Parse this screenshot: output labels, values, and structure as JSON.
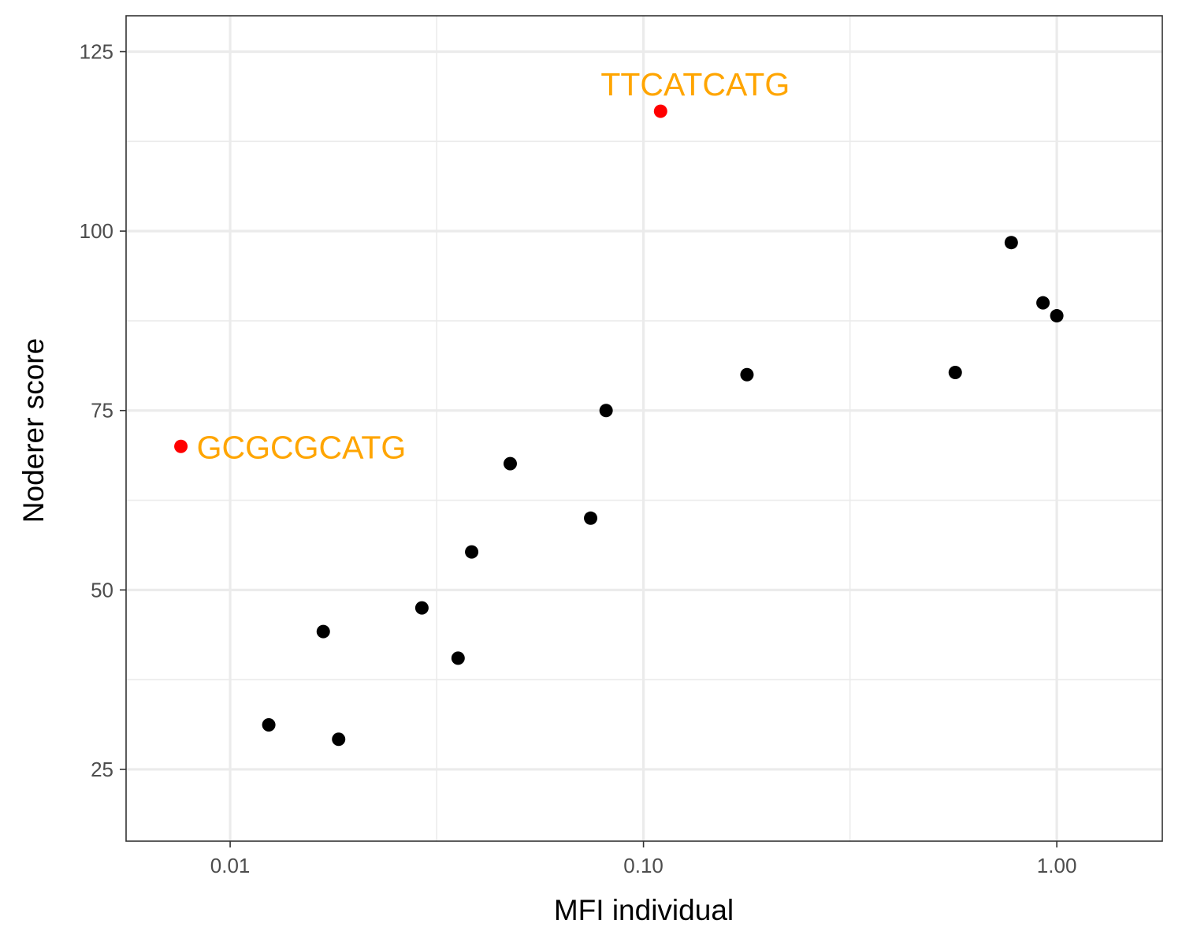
{
  "chart_data": {
    "type": "scatter",
    "title": "",
    "xlabel": "MFI individual",
    "ylabel": "Noderer score",
    "x_scale": "log10",
    "xlim": [
      0.0056,
      1.8
    ],
    "ylim": [
      15,
      130
    ],
    "x_ticks": [
      {
        "value": 0.01,
        "label": "0.01"
      },
      {
        "value": 0.1,
        "label": "0.10"
      },
      {
        "value": 1.0,
        "label": "1.00"
      }
    ],
    "y_ticks": [
      {
        "value": 25,
        "label": "25"
      },
      {
        "value": 50,
        "label": "50"
      },
      {
        "value": 75,
        "label": "75"
      },
      {
        "value": 100,
        "label": "100"
      },
      {
        "value": 125,
        "label": "125"
      }
    ],
    "y_minor_ticks": [
      37.5,
      62.5,
      87.5,
      112.5
    ],
    "x_minor_ticks": [
      0.0316,
      0.316
    ],
    "grid": true,
    "colors": {
      "point": "#000000",
      "highlight": "#ff0000",
      "label": "#ffa500",
      "grid": "#ebebeb",
      "panel_border": "#333333"
    },
    "points": [
      {
        "x": 0.0124,
        "y": 31.2
      },
      {
        "x": 0.0168,
        "y": 44.2
      },
      {
        "x": 0.0183,
        "y": 29.2
      },
      {
        "x": 0.0291,
        "y": 47.5
      },
      {
        "x": 0.0356,
        "y": 40.5
      },
      {
        "x": 0.0384,
        "y": 55.3
      },
      {
        "x": 0.0476,
        "y": 67.6
      },
      {
        "x": 0.0745,
        "y": 60.0
      },
      {
        "x": 0.0812,
        "y": 75.0
      },
      {
        "x": 0.178,
        "y": 80.0
      },
      {
        "x": 0.568,
        "y": 80.3
      },
      {
        "x": 0.776,
        "y": 98.4
      },
      {
        "x": 0.926,
        "y": 90.0
      },
      {
        "x": 1.0,
        "y": 88.2
      }
    ],
    "highlighted_points": [
      {
        "x": 0.11,
        "y": 116.7,
        "label": "TTCATCATG"
      },
      {
        "x": 0.0076,
        "y": 70.0,
        "label": "GCGCGCATG"
      }
    ]
  }
}
